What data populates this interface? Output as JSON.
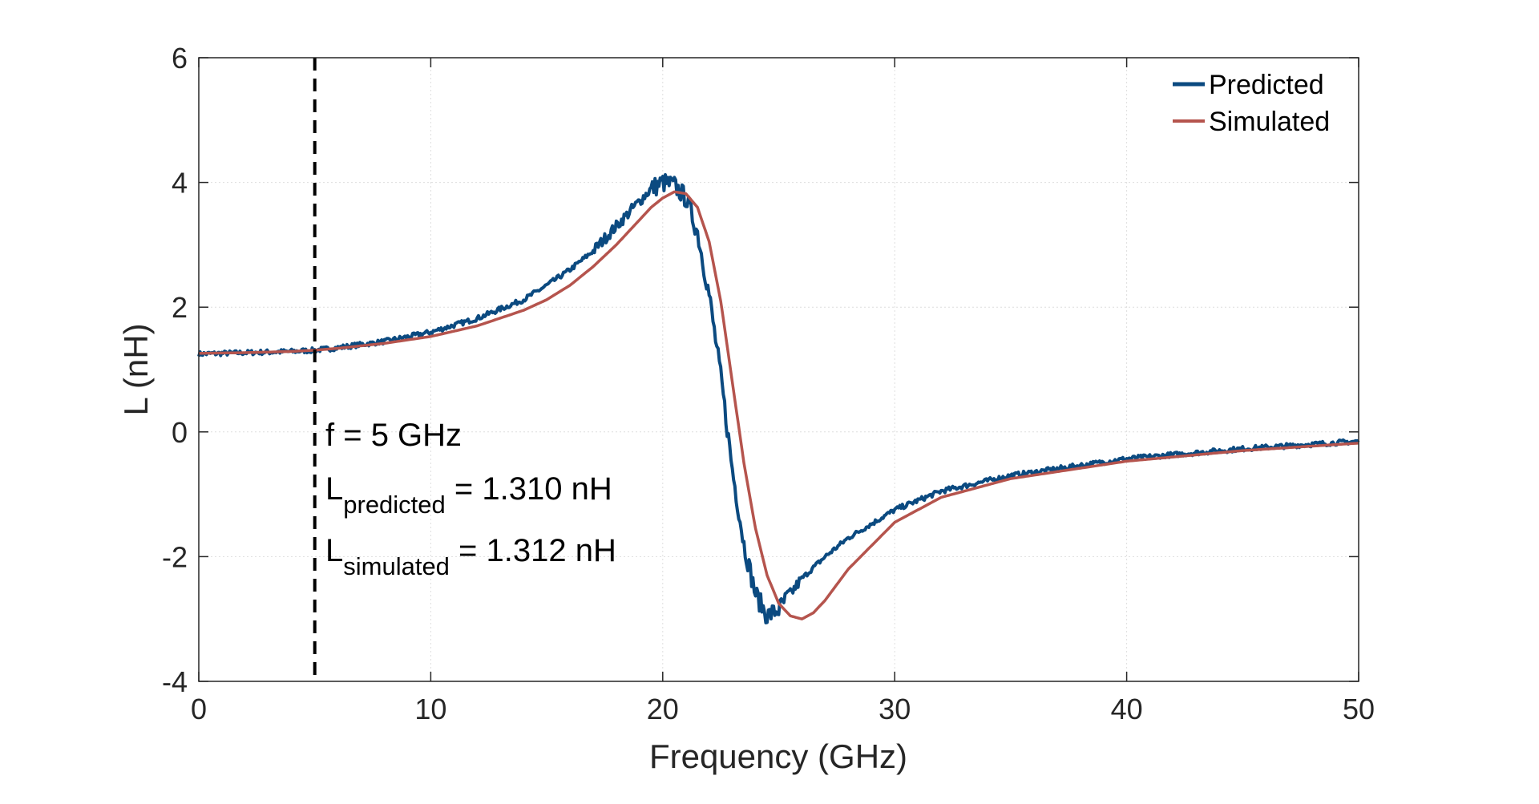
{
  "chart_data": {
    "type": "line",
    "title": "",
    "xlabel": "Frequency (GHz)",
    "ylabel": "L (nH)",
    "xlim": [
      0,
      50
    ],
    "ylim": [
      -4,
      6
    ],
    "xticks": [
      0,
      10,
      20,
      30,
      40,
      50
    ],
    "xtick_labels": [
      "0",
      "10",
      "20",
      "30",
      "40",
      "50"
    ],
    "yticks": [
      -4,
      -2,
      0,
      2,
      4,
      6
    ],
    "ytick_labels": [
      "-4",
      "-2",
      "0",
      "2",
      "4",
      "6"
    ],
    "grid": true,
    "legend_position": "top-right",
    "series": [
      {
        "name": "Predicted",
        "color": "#0b4a80",
        "noisy": true,
        "x": [
          0,
          2,
          4,
          5,
          6,
          8,
          10,
          12,
          14,
          15,
          16,
          17,
          18,
          19,
          19.5,
          20,
          20.5,
          21,
          21.5,
          22,
          22.5,
          23,
          23.5,
          24,
          24.5,
          25,
          25.5,
          26,
          27,
          28,
          30,
          32,
          35,
          40,
          45,
          50
        ],
        "y": [
          1.25,
          1.27,
          1.29,
          1.31,
          1.35,
          1.45,
          1.6,
          1.82,
          2.12,
          2.35,
          2.6,
          2.9,
          3.3,
          3.7,
          3.9,
          4.0,
          3.95,
          3.75,
          3.2,
          2.2,
          0.9,
          -0.6,
          -1.8,
          -2.6,
          -2.95,
          -2.85,
          -2.6,
          -2.35,
          -2.0,
          -1.7,
          -1.25,
          -0.95,
          -0.7,
          -0.43,
          -0.27,
          -0.15
        ]
      },
      {
        "name": "Simulated",
        "color": "#b5544d",
        "noisy": false,
        "x": [
          0,
          2,
          4,
          5,
          6,
          8,
          10,
          12,
          14,
          15,
          16,
          17,
          18,
          19,
          19.5,
          20,
          20.5,
          21,
          21.5,
          22,
          22.5,
          23,
          23.5,
          24,
          24.5,
          25,
          25.5,
          26,
          26.5,
          27,
          28,
          30,
          32,
          35,
          40,
          45,
          50
        ],
        "y": [
          1.26,
          1.27,
          1.29,
          1.31,
          1.34,
          1.42,
          1.53,
          1.7,
          1.95,
          2.12,
          2.35,
          2.65,
          3.0,
          3.4,
          3.6,
          3.75,
          3.85,
          3.82,
          3.6,
          3.05,
          2.1,
          0.8,
          -0.5,
          -1.55,
          -2.3,
          -2.75,
          -2.95,
          -3.0,
          -2.9,
          -2.7,
          -2.2,
          -1.45,
          -1.05,
          -0.75,
          -0.47,
          -0.3,
          -0.18
        ]
      }
    ],
    "marker_line": {
      "x": 5,
      "style": "dashed",
      "color": "#000000"
    },
    "annotations": {
      "freq": "f = 5 GHz",
      "pred_L": "L",
      "pred_sub": "predicted",
      "pred_value": " = 1.310 nH",
      "sim_L": "L",
      "sim_sub": "simulated",
      "sim_value": " = 1.312 nH"
    }
  }
}
